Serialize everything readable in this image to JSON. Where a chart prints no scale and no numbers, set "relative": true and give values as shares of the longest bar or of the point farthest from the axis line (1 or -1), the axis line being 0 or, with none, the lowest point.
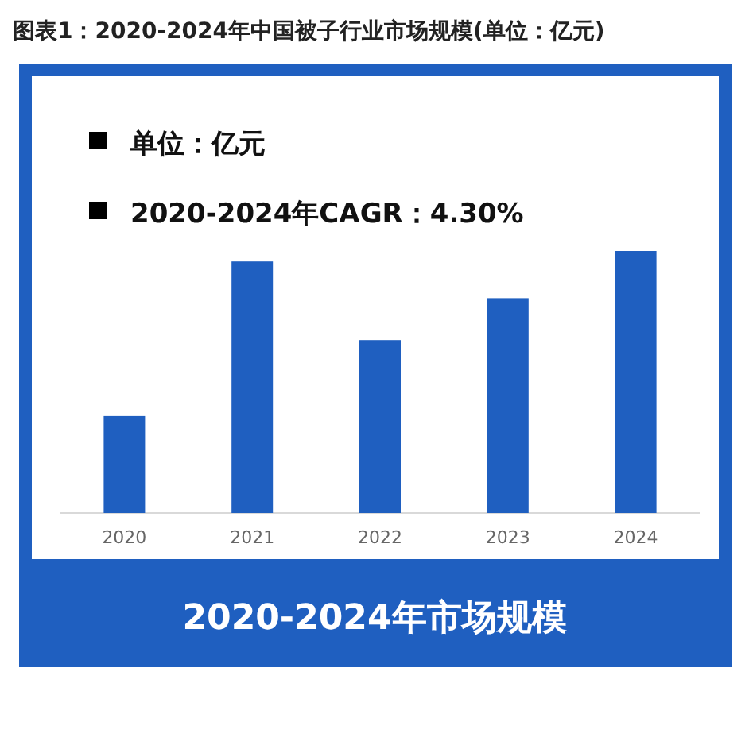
{
  "chart_data": {
    "type": "bar",
    "title": "图表1：2020-2024年中国被子行业市场规模(单位：亿元)",
    "subtitle": "2020-2024年市场规模",
    "annotations": [
      "单位：亿元",
      "2020-2024年CAGR：4.30%"
    ],
    "categories": [
      "2020",
      "2021",
      "2022",
      "2023",
      "2024"
    ],
    "values": [
      0.37,
      0.96,
      0.66,
      0.82,
      1
    ],
    "color": "#1f5fc0",
    "relative": true
  }
}
